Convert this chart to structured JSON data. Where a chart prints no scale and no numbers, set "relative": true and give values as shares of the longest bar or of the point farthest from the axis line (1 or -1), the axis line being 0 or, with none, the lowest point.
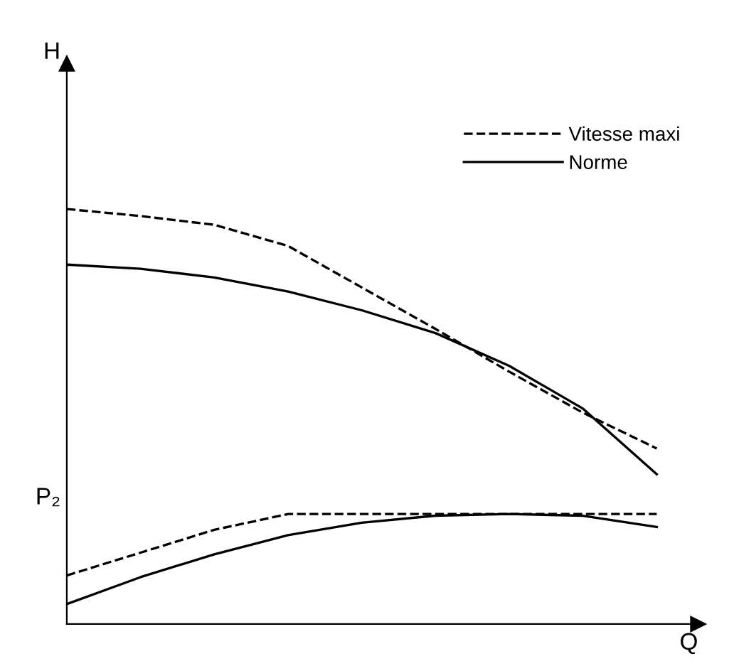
{
  "chart_data": {
    "type": "line",
    "relative": true,
    "xlabel": "Q",
    "legend": "top right",
    "annotations": [
      "H",
      "P₂"
    ],
    "categories": [
      null,
      null,
      null,
      null,
      null,
      null,
      null,
      null,
      null
    ],
    "series": [
      {
        "name": "Vitesse maxi",
        "color": "#000000",
        "line_style": "dashed",
        "values": [
          1,
          0.983,
          0.962,
          0.911,
          0.811,
          0.711,
          0.608,
          0.509,
          0.423
        ]
      },
      {
        "name": "Norme",
        "color": "#000000",
        "line_style": "solid",
        "values": [
          0.866,
          0.856,
          0.835,
          0.801,
          0.756,
          0.701,
          0.622,
          0.519,
          0.361
        ]
      },
      {
        "color": "#000000",
        "line_style": "dashed",
        "values": [
          0.117,
          0.172,
          0.227,
          0.265,
          0.265,
          0.265,
          0.265,
          0.265,
          0.265
        ]
      },
      {
        "color": "#000000",
        "line_style": "solid",
        "values": [
          0.048,
          0.113,
          0.168,
          0.214,
          0.244,
          0.261,
          0.265,
          0.261,
          0.234
        ]
      }
    ]
  }
}
